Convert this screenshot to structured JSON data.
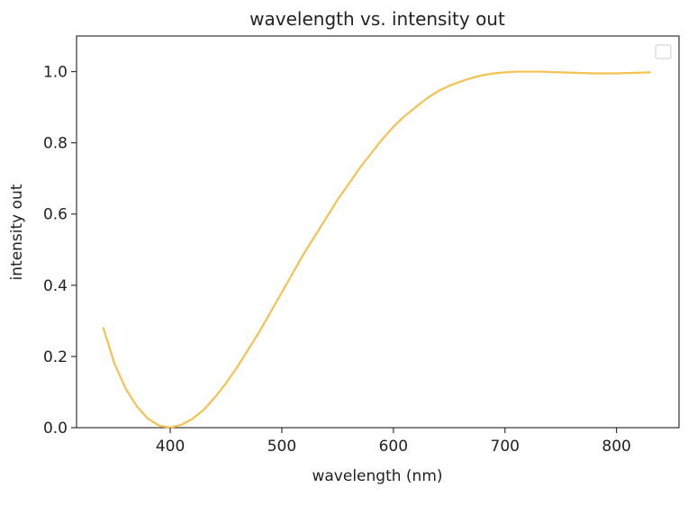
{
  "chart_data": {
    "type": "line",
    "title": "wavelength vs. intensity out",
    "xlabel": "wavelength (nm)",
    "ylabel": "intensity out",
    "xlim": [
      316,
      856
    ],
    "ylim": [
      0,
      1.1
    ],
    "xticks": [
      "400",
      "500",
      "600",
      "700",
      "800"
    ],
    "yticks": [
      "0.0",
      "0.2",
      "0.4",
      "0.6",
      "0.8",
      "1.0"
    ],
    "grid": false,
    "legend": {
      "placement": "top-right",
      "entries": []
    },
    "colors": {
      "line": "#f5c151",
      "axes": "#333333",
      "background": "#ffffff"
    },
    "series": [
      {
        "x": [
          340,
          350,
          360,
          370,
          380,
          390,
          400,
          410,
          420,
          430,
          440,
          450,
          460,
          470,
          480,
          490,
          500,
          510,
          520,
          530,
          540,
          550,
          560,
          570,
          580,
          590,
          600,
          610,
          620,
          630,
          640,
          650,
          660,
          670,
          680,
          690,
          700,
          710,
          720,
          730,
          740,
          750,
          760,
          770,
          780,
          790,
          800,
          810,
          820,
          830
        ],
        "y": [
          0.28,
          0.18,
          0.11,
          0.06,
          0.025,
          0.006,
          0.0,
          0.008,
          0.025,
          0.05,
          0.085,
          0.125,
          0.17,
          0.22,
          0.27,
          0.325,
          0.38,
          0.435,
          0.49,
          0.54,
          0.59,
          0.64,
          0.685,
          0.73,
          0.77,
          0.81,
          0.845,
          0.875,
          0.9,
          0.925,
          0.945,
          0.96,
          0.972,
          0.982,
          0.99,
          0.995,
          0.998,
          1.0,
          1.0,
          1.0,
          0.999,
          0.998,
          0.997,
          0.996,
          0.995,
          0.995,
          0.995,
          0.996,
          0.997,
          0.998
        ]
      }
    ]
  }
}
